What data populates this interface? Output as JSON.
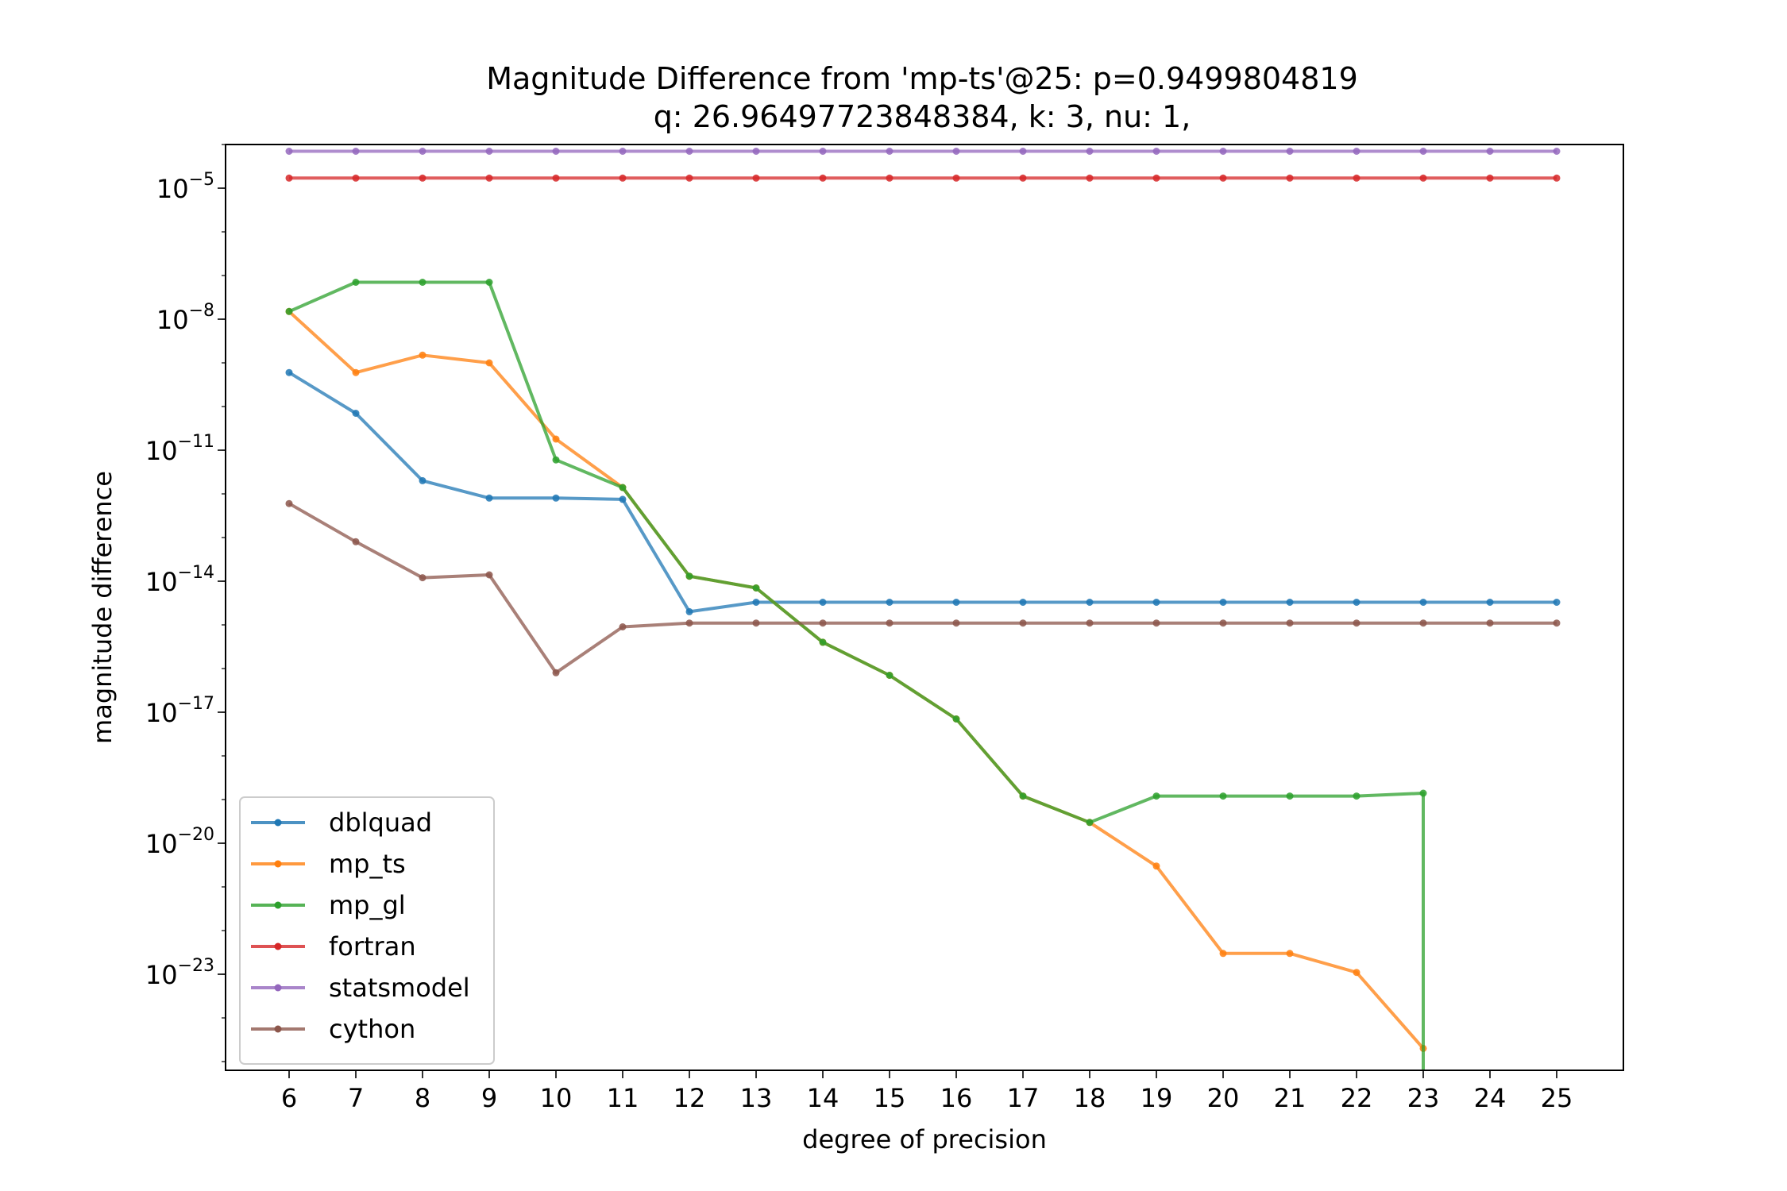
{
  "chart_data": {
    "type": "line",
    "title": "Magnitude Difference from 'mp-ts'@25: p=0.9499804819",
    "subtitle": "q: 26.96497723848384, k: 3, nu: 1,",
    "xlabel": "degree of precision",
    "ylabel": "magnitude difference",
    "y_scale": "log",
    "ylim": [
      6e-26,
      0.0001
    ],
    "xlim": [
      5.2,
      25.8
    ],
    "x": [
      6,
      7,
      8,
      9,
      10,
      11,
      12,
      13,
      14,
      15,
      16,
      17,
      18,
      19,
      20,
      21,
      22,
      23,
      24,
      25
    ],
    "y_ticks": [
      {
        "value": 1e-05,
        "base": "10",
        "exp": "−5"
      },
      {
        "value": 1e-08,
        "base": "10",
        "exp": "−8"
      },
      {
        "value": 1e-11,
        "base": "10",
        "exp": "−11"
      },
      {
        "value": 1e-14,
        "base": "10",
        "exp": "−14"
      },
      {
        "value": 1e-17,
        "base": "10",
        "exp": "−17"
      },
      {
        "value": 1e-20,
        "base": "10",
        "exp": "−20"
      },
      {
        "value": 1e-23,
        "base": "10",
        "exp": "−23"
      }
    ],
    "legend_position": "lower-left",
    "grid": false,
    "series": [
      {
        "name": "dblquad",
        "color": "#1f77b4",
        "values": [
          6e-10,
          7e-11,
          2e-12,
          8e-13,
          8e-13,
          7.5e-13,
          2e-15,
          3.3e-15,
          3.3e-15,
          3.3e-15,
          3.3e-15,
          3.3e-15,
          3.3e-15,
          3.3e-15,
          3.3e-15,
          3.3e-15,
          3.3e-15,
          3.3e-15,
          3.3e-15,
          3.3e-15
        ]
      },
      {
        "name": "mp_ts",
        "color": "#ff7f0e",
        "values": [
          1.5e-08,
          6e-10,
          1.5e-09,
          1e-09,
          1.8e-11,
          1.4e-12,
          1.3e-14,
          7e-15,
          4e-16,
          7e-17,
          7e-18,
          1.2e-19,
          3e-20,
          3e-21,
          3e-23,
          3e-23,
          1.1e-23,
          2e-25,
          null,
          null
        ]
      },
      {
        "name": "mp_gl",
        "color": "#2ca02c",
        "values": [
          1.5e-08,
          7e-08,
          7e-08,
          7e-08,
          6e-12,
          1.4e-12,
          1.3e-14,
          7e-15,
          4e-16,
          7e-17,
          7e-18,
          1.2e-19,
          3e-20,
          1.2e-19,
          1.2e-19,
          1.2e-19,
          1.2e-19,
          1.4e-19,
          null,
          null
        ],
        "note_drop_at": 23
      },
      {
        "name": "fortran",
        "color": "#d62728",
        "values": [
          1.7e-05,
          1.7e-05,
          1.7e-05,
          1.7e-05,
          1.7e-05,
          1.7e-05,
          1.7e-05,
          1.7e-05,
          1.7e-05,
          1.7e-05,
          1.7e-05,
          1.7e-05,
          1.7e-05,
          1.7e-05,
          1.7e-05,
          1.7e-05,
          1.7e-05,
          1.7e-05,
          1.7e-05,
          1.7e-05
        ]
      },
      {
        "name": "statsmodel",
        "color": "#9467bd",
        "values": [
          7e-05,
          7e-05,
          7e-05,
          7e-05,
          7e-05,
          7e-05,
          7e-05,
          7e-05,
          7e-05,
          7e-05,
          7e-05,
          7e-05,
          7e-05,
          7e-05,
          7e-05,
          7e-05,
          7e-05,
          7e-05,
          7e-05,
          7e-05
        ]
      },
      {
        "name": "cython",
        "color": "#8c564b",
        "values": [
          6e-13,
          8e-14,
          1.2e-14,
          1.4e-14,
          8e-17,
          9e-16,
          1.1e-15,
          1.1e-15,
          1.1e-15,
          1.1e-15,
          1.1e-15,
          1.1e-15,
          1.1e-15,
          1.1e-15,
          1.1e-15,
          1.1e-15,
          1.1e-15,
          1.1e-15,
          1.1e-15,
          1.1e-15
        ]
      }
    ]
  }
}
